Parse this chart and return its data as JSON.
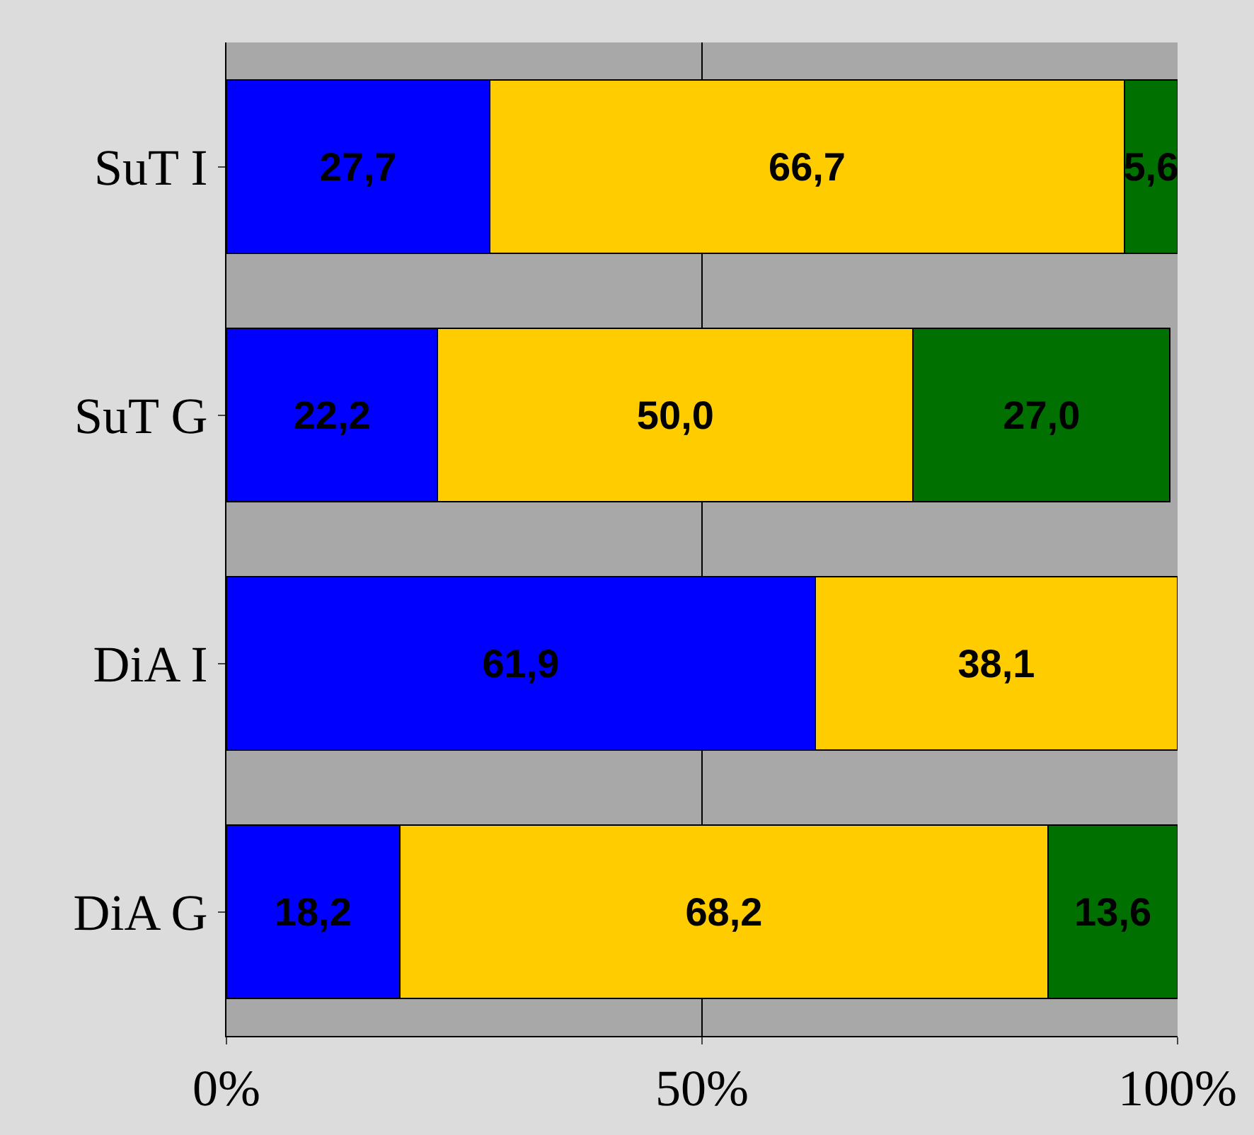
{
  "chart_data": {
    "type": "bar",
    "orientation": "horizontal",
    "stacked": true,
    "categories": [
      "SuT I",
      "SuT G",
      "DiA I",
      "DiA G"
    ],
    "series": [
      {
        "color": "#0000ff",
        "values": [
          27.7,
          22.2,
          61.9,
          18.2
        ],
        "value_labels": [
          "27,7",
          "22,2",
          "61,9",
          "18,2"
        ]
      },
      {
        "color": "#ffcc00",
        "values": [
          66.7,
          50.0,
          38.1,
          68.2
        ],
        "value_labels": [
          "66,7",
          "50,0",
          "38,1",
          "68,2"
        ]
      },
      {
        "color": "#007000",
        "values": [
          5.6,
          27.0,
          null,
          13.6
        ],
        "value_labels": [
          "5,6",
          "27,0",
          null,
          "13,6"
        ]
      }
    ],
    "xlim": [
      0,
      100
    ],
    "xticks": [
      {
        "value": 0,
        "label": "0%"
      },
      {
        "value": 50,
        "label": "50%"
      },
      {
        "value": 100,
        "label": "100%"
      }
    ],
    "grid": "x"
  }
}
